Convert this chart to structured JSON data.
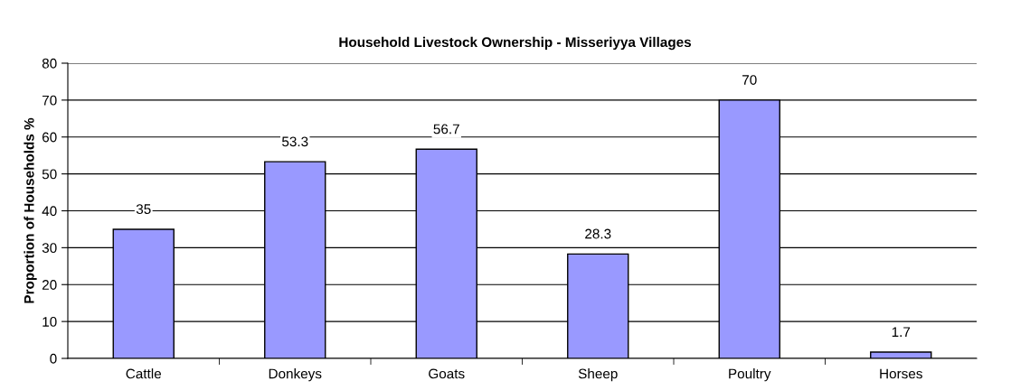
{
  "chart_data": {
    "type": "bar",
    "title": "Household Livestock Ownership - Misseriyya Villages",
    "ylabel": "Proportion of Households %",
    "categories": [
      "Cattle",
      "Donkeys",
      "Goats",
      "Sheep",
      "Poultry",
      "Horses"
    ],
    "values": [
      35,
      53.3,
      56.7,
      28.3,
      70,
      1.7
    ],
    "color": "#9999ff",
    "ylim": [
      0,
      80
    ],
    "yticks": [
      0,
      10,
      20,
      30,
      40,
      50,
      60,
      70,
      80
    ],
    "grid": "y",
    "data_labels": true
  }
}
